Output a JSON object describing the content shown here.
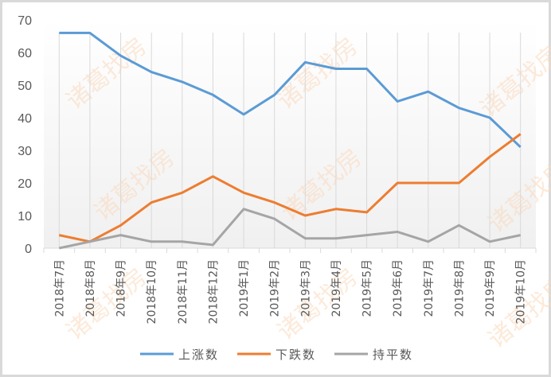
{
  "chart_data": {
    "type": "line",
    "title": "",
    "xlabel": "",
    "ylabel": "",
    "ylim": [
      0,
      70
    ],
    "yticks": [
      0,
      10,
      20,
      30,
      40,
      50,
      60,
      70
    ],
    "grid": "vertical category lines",
    "legend_position": "bottom",
    "categories": [
      "2018年7月",
      "2018年8月",
      "2018年9月",
      "2018年10月",
      "2018年11月",
      "2018年12月",
      "2019年1月",
      "2019年2月",
      "2019年3月",
      "2019年4月",
      "2019年5月",
      "2019年6月",
      "2019年7月",
      "2019年8月",
      "2019年9月",
      "2019年10月"
    ],
    "series": [
      {
        "name": "上涨数",
        "color": "#5B9BD5",
        "values": [
          66,
          66,
          59,
          54,
          51,
          47,
          41,
          47,
          57,
          55,
          55,
          45,
          48,
          43,
          40,
          31
        ]
      },
      {
        "name": "下跌数",
        "color": "#ED7D31",
        "values": [
          4,
          2,
          7,
          14,
          17,
          22,
          17,
          14,
          10,
          12,
          11,
          20,
          20,
          20,
          28,
          35
        ]
      },
      {
        "name": "持平数",
        "color": "#A5A5A5",
        "values": [
          0,
          2,
          4,
          2,
          2,
          1,
          12,
          9,
          3,
          3,
          4,
          5,
          2,
          7,
          2,
          4
        ]
      }
    ]
  },
  "watermark": {
    "text": "诸葛找房",
    "color": "#fbd9bd"
  }
}
